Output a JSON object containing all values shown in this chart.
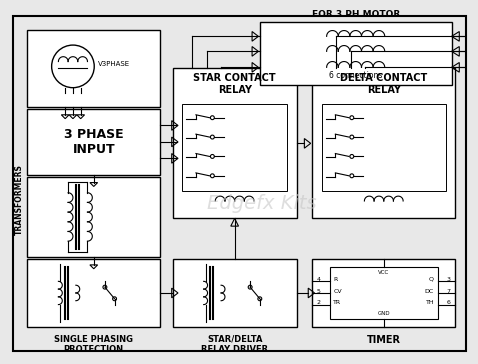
{
  "bg_color": "#e8e8e8",
  "line_color": "#000000",
  "box_color": "#ffffff",
  "watermark": "Edgefx Kits",
  "watermark_color": "#c8c8c8",
  "title_top": "FOR 3 PH MOTOR",
  "label_3phase_input": "3 PHASE\nINPUT",
  "label_transformers": "TRANSFORMERS",
  "label_star_relay": "STAR CONTACT\nRELAY",
  "label_delta_relay": "DELTA CONTACT\nRELAY",
  "label_single_phasing": "SINGLE PHASING\nPROTECTION",
  "label_star_delta_driver": "STAR/DELTA\nRELAY DRIVER",
  "label_timer": "TIMER",
  "label_6conn": "6 connections",
  "label_v3phase": "V3PHASE"
}
